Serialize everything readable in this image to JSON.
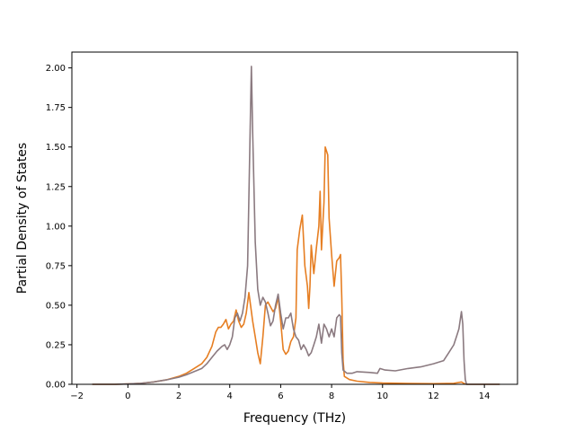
{
  "chart_data": {
    "type": "line",
    "title": "",
    "xlabel": "Frequency (THz)",
    "ylabel": "Partial Density of States",
    "xlim": [
      -2.2,
      15.3
    ],
    "ylim": [
      0,
      2.1
    ],
    "xticks": [
      -2,
      0,
      2,
      4,
      6,
      8,
      10,
      12,
      14
    ],
    "xtick_labels": [
      "−2",
      "0",
      "2",
      "4",
      "6",
      "8",
      "10",
      "12",
      "14"
    ],
    "yticks": [
      0,
      0.25,
      0.5,
      0.75,
      1.0,
      1.25,
      1.5,
      1.75,
      2.0
    ],
    "ytick_labels": [
      "0.00",
      "0.25",
      "0.50",
      "0.75",
      "1.00",
      "1.25",
      "1.50",
      "1.75",
      "2.00"
    ],
    "grid": false,
    "legend": "none",
    "series": [
      {
        "color": "#e67e22",
        "points": [
          [
            -1.4,
            0
          ],
          [
            -0.5,
            0
          ],
          [
            0,
            0.002
          ],
          [
            0.5,
            0.006
          ],
          [
            1,
            0.015
          ],
          [
            1.5,
            0.028
          ],
          [
            2,
            0.05
          ],
          [
            2.3,
            0.07
          ],
          [
            2.6,
            0.1
          ],
          [
            2.9,
            0.13
          ],
          [
            3.1,
            0.17
          ],
          [
            3.3,
            0.24
          ],
          [
            3.45,
            0.33
          ],
          [
            3.55,
            0.36
          ],
          [
            3.65,
            0.36
          ],
          [
            3.75,
            0.38
          ],
          [
            3.85,
            0.41
          ],
          [
            3.95,
            0.35
          ],
          [
            4.05,
            0.38
          ],
          [
            4.15,
            0.4
          ],
          [
            4.25,
            0.47
          ],
          [
            4.35,
            0.4
          ],
          [
            4.45,
            0.36
          ],
          [
            4.55,
            0.38
          ],
          [
            4.65,
            0.45
          ],
          [
            4.75,
            0.58
          ],
          [
            4.8,
            0.52
          ],
          [
            4.9,
            0.4
          ],
          [
            5.0,
            0.3
          ],
          [
            5.1,
            0.2
          ],
          [
            5.2,
            0.13
          ],
          [
            5.3,
            0.3
          ],
          [
            5.4,
            0.5
          ],
          [
            5.5,
            0.52
          ],
          [
            5.6,
            0.49
          ],
          [
            5.7,
            0.46
          ],
          [
            5.8,
            0.48
          ],
          [
            5.9,
            0.55
          ],
          [
            6.0,
            0.4
          ],
          [
            6.1,
            0.22
          ],
          [
            6.2,
            0.19
          ],
          [
            6.3,
            0.21
          ],
          [
            6.4,
            0.27
          ],
          [
            6.5,
            0.3
          ],
          [
            6.6,
            0.42
          ],
          [
            6.65,
            0.85
          ],
          [
            6.75,
            0.98
          ],
          [
            6.85,
            1.07
          ],
          [
            6.95,
            0.75
          ],
          [
            7.05,
            0.62
          ],
          [
            7.1,
            0.48
          ],
          [
            7.15,
            0.62
          ],
          [
            7.2,
            0.88
          ],
          [
            7.3,
            0.7
          ],
          [
            7.4,
            0.86
          ],
          [
            7.5,
            1.0
          ],
          [
            7.55,
            1.22
          ],
          [
            7.6,
            0.85
          ],
          [
            7.7,
            1.15
          ],
          [
            7.75,
            1.5
          ],
          [
            7.85,
            1.45
          ],
          [
            7.9,
            1.05
          ],
          [
            8.0,
            0.82
          ],
          [
            8.1,
            0.62
          ],
          [
            8.2,
            0.78
          ],
          [
            8.3,
            0.8
          ],
          [
            8.35,
            0.82
          ],
          [
            8.4,
            0.55
          ],
          [
            8.45,
            0.15
          ],
          [
            8.5,
            0.05
          ],
          [
            8.7,
            0.03
          ],
          [
            9.0,
            0.02
          ],
          [
            9.5,
            0.012
          ],
          [
            10,
            0.008
          ],
          [
            11,
            0.005
          ],
          [
            12,
            0.004
          ],
          [
            12.8,
            0.006
          ],
          [
            13.1,
            0.015
          ],
          [
            13.2,
            0.005
          ],
          [
            13.3,
            0
          ],
          [
            14.6,
            0
          ]
        ]
      },
      {
        "color": "#8b7a80",
        "points": [
          [
            -1.4,
            0
          ],
          [
            -0.5,
            0
          ],
          [
            0,
            0.002
          ],
          [
            0.5,
            0.006
          ],
          [
            1,
            0.015
          ],
          [
            1.5,
            0.028
          ],
          [
            2,
            0.045
          ],
          [
            2.3,
            0.06
          ],
          [
            2.6,
            0.08
          ],
          [
            2.9,
            0.1
          ],
          [
            3.1,
            0.13
          ],
          [
            3.3,
            0.17
          ],
          [
            3.5,
            0.21
          ],
          [
            3.7,
            0.24
          ],
          [
            3.8,
            0.25
          ],
          [
            3.9,
            0.22
          ],
          [
            4.0,
            0.25
          ],
          [
            4.1,
            0.3
          ],
          [
            4.2,
            0.42
          ],
          [
            4.3,
            0.45
          ],
          [
            4.4,
            0.4
          ],
          [
            4.5,
            0.45
          ],
          [
            4.6,
            0.55
          ],
          [
            4.7,
            0.75
          ],
          [
            4.8,
            1.6
          ],
          [
            4.85,
            2.01
          ],
          [
            4.9,
            1.6
          ],
          [
            5.0,
            0.9
          ],
          [
            5.1,
            0.6
          ],
          [
            5.2,
            0.5
          ],
          [
            5.3,
            0.55
          ],
          [
            5.4,
            0.52
          ],
          [
            5.5,
            0.45
          ],
          [
            5.6,
            0.37
          ],
          [
            5.7,
            0.4
          ],
          [
            5.8,
            0.5
          ],
          [
            5.9,
            0.57
          ],
          [
            6.0,
            0.45
          ],
          [
            6.1,
            0.35
          ],
          [
            6.2,
            0.42
          ],
          [
            6.3,
            0.42
          ],
          [
            6.4,
            0.45
          ],
          [
            6.5,
            0.35
          ],
          [
            6.6,
            0.3
          ],
          [
            6.7,
            0.28
          ],
          [
            6.8,
            0.22
          ],
          [
            6.9,
            0.25
          ],
          [
            7.0,
            0.22
          ],
          [
            7.1,
            0.18
          ],
          [
            7.2,
            0.2
          ],
          [
            7.3,
            0.25
          ],
          [
            7.4,
            0.3
          ],
          [
            7.5,
            0.38
          ],
          [
            7.6,
            0.26
          ],
          [
            7.7,
            0.38
          ],
          [
            7.8,
            0.35
          ],
          [
            7.9,
            0.3
          ],
          [
            8.0,
            0.35
          ],
          [
            8.1,
            0.3
          ],
          [
            8.2,
            0.42
          ],
          [
            8.3,
            0.44
          ],
          [
            8.35,
            0.43
          ],
          [
            8.4,
            0.2
          ],
          [
            8.45,
            0.09
          ],
          [
            8.6,
            0.07
          ],
          [
            8.8,
            0.07
          ],
          [
            9.0,
            0.08
          ],
          [
            9.5,
            0.075
          ],
          [
            9.8,
            0.07
          ],
          [
            9.9,
            0.1
          ],
          [
            10.1,
            0.09
          ],
          [
            10.5,
            0.085
          ],
          [
            11,
            0.1
          ],
          [
            11.5,
            0.11
          ],
          [
            12,
            0.13
          ],
          [
            12.4,
            0.15
          ],
          [
            12.6,
            0.2
          ],
          [
            12.8,
            0.25
          ],
          [
            12.9,
            0.3
          ],
          [
            13.0,
            0.35
          ],
          [
            13.1,
            0.46
          ],
          [
            13.15,
            0.38
          ],
          [
            13.2,
            0.15
          ],
          [
            13.25,
            0.03
          ],
          [
            13.3,
            0
          ],
          [
            14.6,
            0
          ]
        ]
      }
    ]
  }
}
